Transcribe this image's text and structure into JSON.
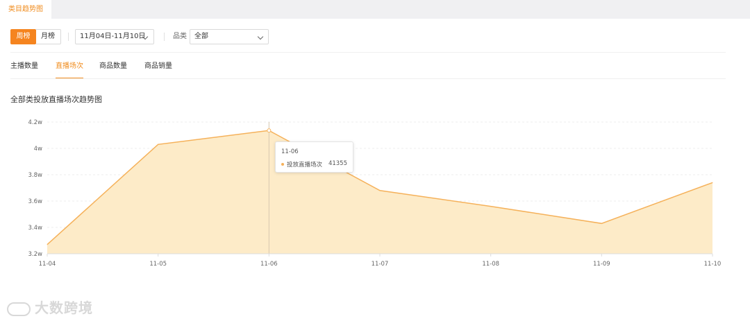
{
  "top_tab": "类目趋势图",
  "filters": {
    "week_label": "周榜",
    "month_label": "月榜",
    "date_range": "11月04日-11月10日",
    "category_label": "品类",
    "category_value": "全部"
  },
  "tabs": [
    "主播数量",
    "直播场次",
    "商品数量",
    "商品销量"
  ],
  "active_tab": "直播场次",
  "section_title": "全部类投放直播场次趋势图",
  "tooltip": {
    "date": "11-06",
    "series": "投放直播场次",
    "value": "41355"
  },
  "colors": {
    "accent": "#f5841f",
    "line": "#f5b15a",
    "fill": "#fdebc8"
  },
  "watermark": "大数跨境",
  "chart_data": {
    "type": "area",
    "categories": [
      "11-04",
      "11-05",
      "11-06",
      "11-07",
      "11-08",
      "11-09",
      "11-10"
    ],
    "series": [
      {
        "name": "投放直播场次",
        "values": [
          32700,
          40300,
          41355,
          36800,
          35600,
          34300,
          37400
        ]
      }
    ],
    "y_ticks": [
      "3.2w",
      "3.4w",
      "3.6w",
      "3.8w",
      "4w",
      "4.2w"
    ],
    "ylim": [
      32000,
      42000
    ],
    "grid": true,
    "highlight_index": 2
  }
}
